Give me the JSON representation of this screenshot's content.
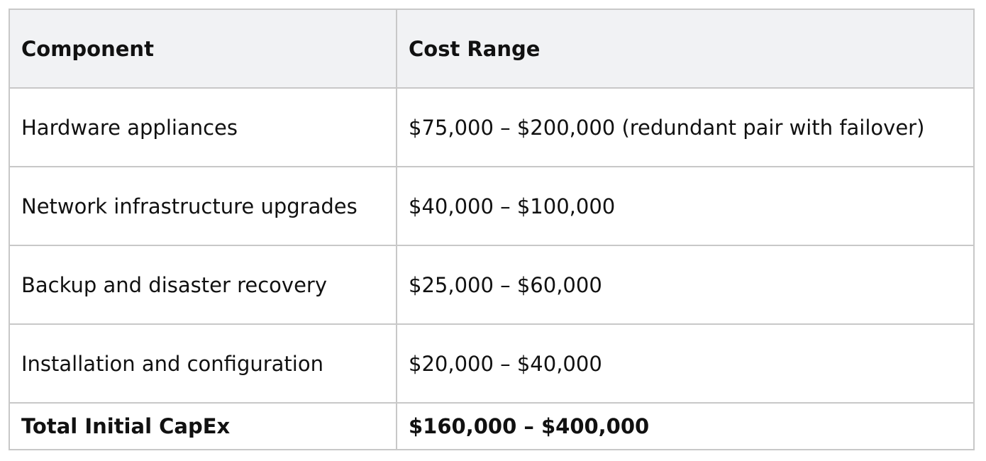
{
  "table": {
    "headers": {
      "component": "Component",
      "cost_range": "Cost Range"
    },
    "rows": [
      {
        "component": "Hardware appliances",
        "cost_range": "$75,000 – $200,000 (redundant pair with failover)"
      },
      {
        "component": "Network infrastructure upgrades",
        "cost_range": "$40,000 – $100,000"
      },
      {
        "component": "Backup and disaster recovery",
        "cost_range": "$25,000 – $60,000"
      },
      {
        "component": "Installation and configuration",
        "cost_range": "$20,000 – $40,000"
      }
    ],
    "total": {
      "component": "Total Initial CapEx",
      "cost_range": "$160,000 – $400,000"
    }
  }
}
